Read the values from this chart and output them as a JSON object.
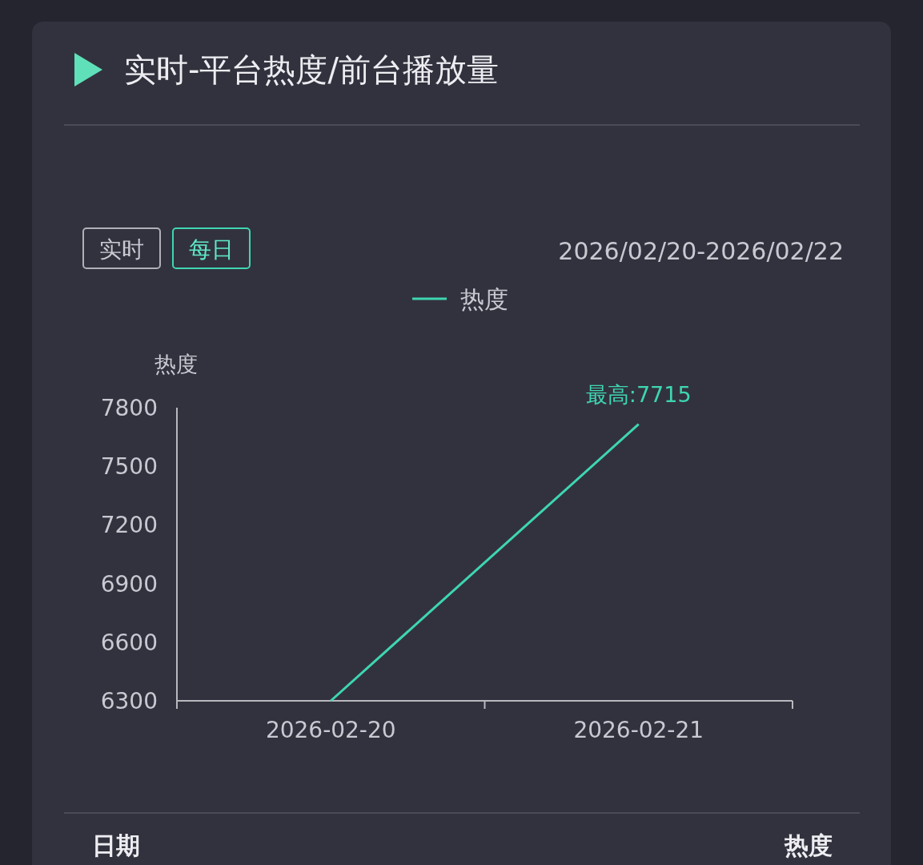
{
  "chart_data": {
    "type": "line",
    "title": "实时-平台热度/前台播放量",
    "subtitle": "2026/02/20-2026/02/22",
    "ylabel": "热度",
    "categories": [
      "2026-02-20",
      "2026-02-21"
    ],
    "series": [
      {
        "name": "热度",
        "color": "#3ed6b2",
        "values": [
          6300,
          7715
        ]
      }
    ],
    "ylim": [
      6300,
      7800
    ],
    "yticks": [
      6300,
      6600,
      6900,
      7200,
      7500,
      7800
    ],
    "legend": "top",
    "grid": false,
    "marker": "none",
    "line_style": "solid",
    "annotations": [
      "实时",
      "每日",
      {
        "text": "最高:7715",
        "x": "2026-02-21",
        "y": 7715
      },
      "日期",
      "热度"
    ]
  }
}
